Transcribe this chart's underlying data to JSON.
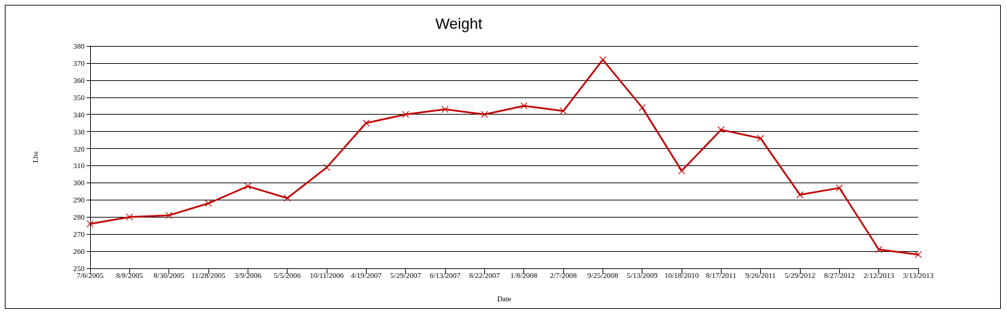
{
  "chart_data": {
    "type": "line",
    "title": "Weight",
    "xlabel": "Date",
    "ylabel": "Lbs",
    "categories": [
      "7/6/2005",
      "8/8/2005",
      "8/30/2005",
      "11/28/2005",
      "3/9/2006",
      "5/5/2006",
      "10/11/2006",
      "4/19/2007",
      "5/29/2007",
      "6/13/2007",
      "8/22/2007",
      "1/8/2008",
      "2/7/2008",
      "9/25/2008",
      "5/13/2009",
      "10/18/2010",
      "8/17/2011",
      "9/26/2011",
      "5/29/2012",
      "8/27/2012",
      "2/12/2013",
      "3/13/2013"
    ],
    "series": [
      {
        "color": "#c00000",
        "values": [
          276,
          280,
          281,
          288,
          298,
          291,
          309,
          335,
          340,
          343,
          340,
          345,
          342,
          372,
          344,
          307,
          331,
          326,
          293,
          297,
          261,
          258
        ]
      }
    ],
    "ylim": [
      250,
      380
    ],
    "yticks": [
      250,
      260,
      270,
      280,
      290,
      300,
      310,
      320,
      330,
      340,
      350,
      360,
      370,
      380
    ],
    "grid": "y",
    "marker": "cross",
    "line_style": "solid"
  }
}
